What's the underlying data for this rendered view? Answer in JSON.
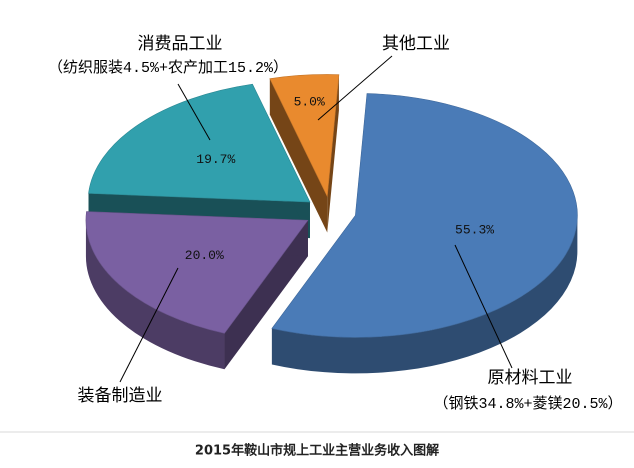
{
  "chart_data": {
    "type": "pie",
    "title": "2015年鞍山市规上工业主营业务收入图解",
    "categories": [
      "原材料工业",
      "装备制造业",
      "消费品工业",
      "其他工业"
    ],
    "category_notes": [
      "（钢铁34.8%+菱镁20.5%）",
      null,
      "（纺织服装4.5%+农产加工15.2%）",
      null
    ],
    "values": [
      55.3,
      20.0,
      19.7,
      5.0
    ],
    "value_labels": [
      "55.3%",
      "20.0%",
      "19.7%",
      "5.0%"
    ],
    "colors": [
      "#4a7bb7",
      "#7a60a2",
      "#31a0ad",
      "#e98a2e"
    ],
    "exploded": true,
    "three_d": true
  }
}
